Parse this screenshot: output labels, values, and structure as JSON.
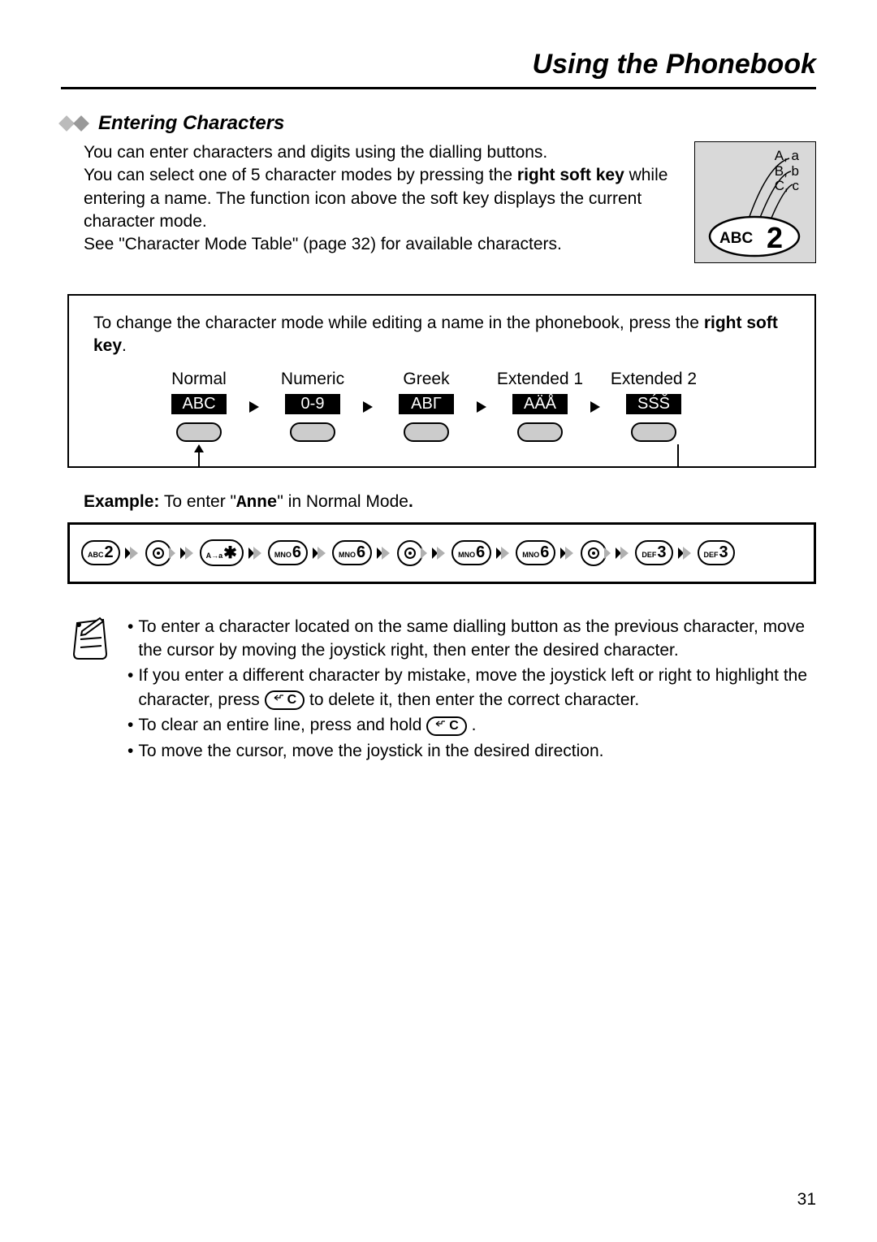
{
  "header": {
    "title": "Using the Phonebook"
  },
  "section": {
    "subtitle": "Entering Characters"
  },
  "intro": {
    "line1": "You can enter characters and digits using the dialling buttons.",
    "line2a": "You can select one of 5 character modes by pressing the ",
    "line2b": "right soft key",
    "line2c": " while entering a name. The function icon above the soft key displays the current character mode.",
    "line3": "See \"Character Mode Table\" (page 32) for available characters."
  },
  "key_illustration": {
    "row1": "A, a",
    "row2": "B, b",
    "row3": "C, c",
    "key_small": "ABC",
    "key_big": "2"
  },
  "mode_box": {
    "text1": "To change the character mode while editing a name in the phonebook, press the ",
    "text2": "right soft key",
    "text3": ".",
    "modes": [
      {
        "label": "Normal",
        "badge": "ABC"
      },
      {
        "label": "Numeric",
        "badge": "0-9"
      },
      {
        "label": "Greek",
        "badge": "ABΓ"
      },
      {
        "label": "Extended 1",
        "badge": "AÄÅ"
      },
      {
        "label": "Extended 2",
        "badge": "SŚŠ"
      }
    ]
  },
  "example": {
    "prefix": "Example:",
    "text": " To enter \"",
    "word": "Anne",
    "suffix": "\" in Normal Mode",
    "end": "."
  },
  "sequence": [
    {
      "type": "key",
      "small": "ABC",
      "big": "2"
    },
    {
      "type": "arrow"
    },
    {
      "type": "joystick"
    },
    {
      "type": "arrow"
    },
    {
      "type": "key",
      "small": "A→a",
      "big": "✱"
    },
    {
      "type": "arrow"
    },
    {
      "type": "key",
      "small": "MNO",
      "big": "6"
    },
    {
      "type": "arrow"
    },
    {
      "type": "key",
      "small": "MNO",
      "big": "6"
    },
    {
      "type": "arrow"
    },
    {
      "type": "joystick"
    },
    {
      "type": "arrow"
    },
    {
      "type": "key",
      "small": "MNO",
      "big": "6"
    },
    {
      "type": "arrow"
    },
    {
      "type": "key",
      "small": "MNO",
      "big": "6"
    },
    {
      "type": "arrow"
    },
    {
      "type": "joystick"
    },
    {
      "type": "arrow"
    },
    {
      "type": "key",
      "small": "DEF",
      "big": "3"
    },
    {
      "type": "arrow"
    },
    {
      "type": "key",
      "small": "DEF",
      "big": "3"
    }
  ],
  "notes": {
    "n1": "To enter a character located on the same dialling button as the previous character, move the cursor by moving the joystick right, then enter the desired character.",
    "n2a": "If you enter a different character by mistake, move the joystick left or right to highlight the character, press ",
    "n2b": " to delete it, then enter the correct character.",
    "n3a": "To clear an entire line, press and hold ",
    "n3b": ".",
    "n4": "To move the cursor, move the joystick in the desired direction.",
    "c_label": "C"
  },
  "page_number": "31",
  "colors": {
    "bg": "#ffffff",
    "text": "#000000",
    "badge_bg": "#000000",
    "badge_fg": "#ffffff",
    "illus_bg": "#d9d9d9",
    "softkey_fill": "#cccccc",
    "arrow_fill": "#b0b0b0"
  }
}
